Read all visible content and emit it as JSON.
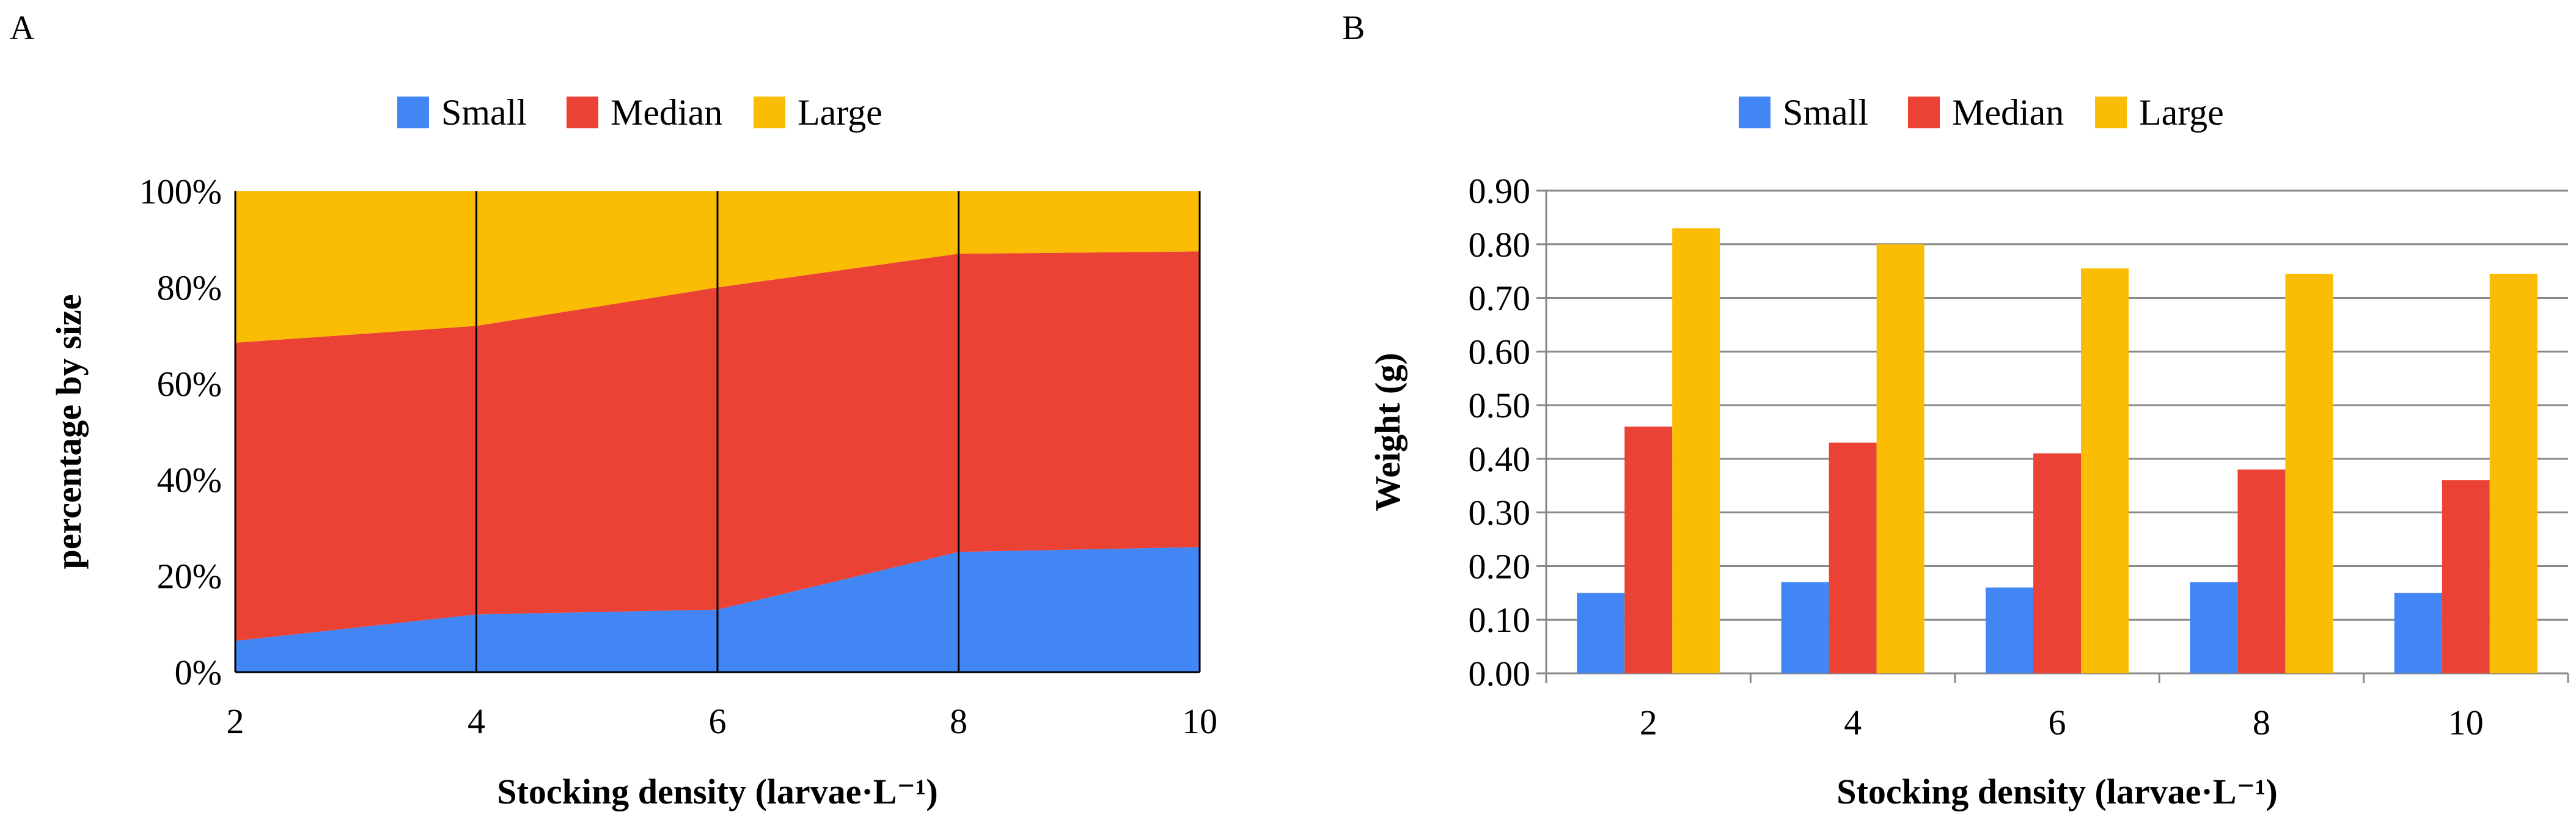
{
  "chart_data": [
    {
      "panel": "A",
      "type": "area",
      "stacked": "percent",
      "title": "",
      "xlabel": "Stocking density (larvae·L⁻¹)",
      "ylabel": "percentage by size",
      "x": [
        "2",
        "4",
        "6",
        "8",
        "10"
      ],
      "ylim": [
        0,
        100
      ],
      "yticks": [
        "0%",
        "20%",
        "40%",
        "60%",
        "80%",
        "100%"
      ],
      "legend_position": "top-center",
      "series": [
        {
          "name": "Small",
          "color": "#4285F4",
          "values": [
            6.5,
            12,
            13,
            25,
            26
          ]
        },
        {
          "name": "Median",
          "color": "#EA4335",
          "values": [
            62,
            60,
            67,
            62,
            61.5
          ]
        },
        {
          "name": "Large",
          "color": "#FBBC04",
          "values": [
            31.5,
            28,
            20,
            13,
            12.5
          ]
        }
      ]
    },
    {
      "panel": "B",
      "type": "bar",
      "title": "",
      "xlabel": "Stocking density (larvae·L⁻¹)",
      "ylabel": "Weight (g)",
      "categories": [
        "2",
        "4",
        "6",
        "8",
        "10"
      ],
      "ylim": [
        0,
        0.9
      ],
      "yticks": [
        "0.00",
        "0.10",
        "0.20",
        "0.30",
        "0.40",
        "0.50",
        "0.60",
        "0.70",
        "0.80",
        "0.90"
      ],
      "grid": true,
      "legend_position": "top-center",
      "series": [
        {
          "name": "Small",
          "color": "#4285F4",
          "values": [
            0.15,
            0.17,
            0.16,
            0.17,
            0.15
          ]
        },
        {
          "name": "Median",
          "color": "#EA4335",
          "values": [
            0.46,
            0.43,
            0.41,
            0.38,
            0.36
          ]
        },
        {
          "name": "Large",
          "color": "#FBBC04",
          "values": [
            0.83,
            0.8,
            0.755,
            0.745,
            0.745
          ]
        }
      ]
    }
  ]
}
